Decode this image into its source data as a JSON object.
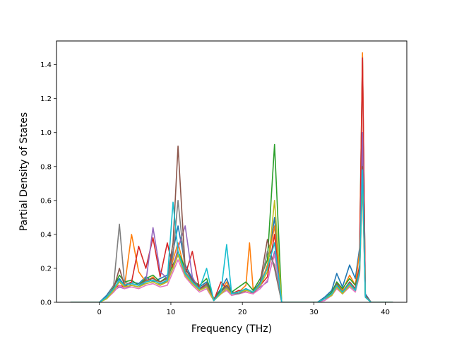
{
  "chart_data": {
    "type": "line",
    "title": "",
    "xlabel": "Frequency (THz)",
    "ylabel": "Partial Density of States",
    "xlim": [
      -6,
      43
    ],
    "ylim": [
      0,
      1.54
    ],
    "xticks": [
      0,
      10,
      20,
      30,
      40
    ],
    "yticks": [
      0.0,
      0.2,
      0.4,
      0.6,
      0.8,
      1.0,
      1.2,
      1.4
    ],
    "xtick_labels": [
      "0",
      "10",
      "20",
      "30",
      "40"
    ],
    "ytick_labels": [
      "0.0",
      "0.2",
      "0.4",
      "0.6",
      "0.8",
      "1.0",
      "1.2",
      "1.4"
    ],
    "grid": false,
    "legend": false,
    "series": [
      {
        "color": "#1f77b4",
        "x": [
          -4,
          0,
          1,
          2,
          2.8,
          3.5,
          4.5,
          5.5,
          6.5,
          7.5,
          8.5,
          9.5,
          10.3,
          11,
          12,
          13,
          14,
          15,
          16,
          17,
          17.8,
          18.5,
          19.5,
          20.5,
          21.5,
          22.5,
          23.5,
          24.5,
          25.5,
          28,
          30.5,
          31.5,
          32.5,
          33.2,
          34,
          35,
          35.8,
          36.4,
          36.8,
          37.2,
          38,
          41
        ],
        "y": [
          0,
          0,
          0.04,
          0.1,
          0.14,
          0.1,
          0.12,
          0.11,
          0.15,
          0.12,
          0.14,
          0.16,
          0.3,
          0.45,
          0.22,
          0.14,
          0.09,
          0.12,
          0.02,
          0.08,
          0.14,
          0.06,
          0.05,
          0.08,
          0.05,
          0.12,
          0.2,
          0.5,
          0,
          0,
          0,
          0.03,
          0.07,
          0.17,
          0.09,
          0.22,
          0.14,
          0.32,
          1.45,
          0.05,
          0,
          0
        ]
      },
      {
        "color": "#ff7f0e",
        "x": [
          -4,
          0,
          1,
          2,
          2.8,
          3.5,
          4.5,
          5.5,
          6.5,
          7.5,
          8.5,
          9.5,
          10.3,
          11,
          12,
          13,
          14,
          15,
          16,
          17,
          17.8,
          18.5,
          19.5,
          20.5,
          21,
          21.5,
          22.5,
          23.5,
          24.5,
          25.5,
          28,
          30.5,
          31.5,
          32.5,
          33.2,
          34,
          35,
          35.8,
          36.4,
          36.8,
          37.2,
          38,
          41
        ],
        "y": [
          0,
          0,
          0.03,
          0.08,
          0.12,
          0.09,
          0.4,
          0.18,
          0.12,
          0.15,
          0.1,
          0.13,
          0.25,
          0.35,
          0.18,
          0.12,
          0.08,
          0.1,
          0.01,
          0.06,
          0.12,
          0.05,
          0.06,
          0.1,
          0.35,
          0.08,
          0.1,
          0.22,
          0.45,
          0,
          0,
          0,
          0.02,
          0.05,
          0.12,
          0.07,
          0.16,
          0.1,
          0.3,
          1.47,
          0.04,
          0,
          0
        ]
      },
      {
        "color": "#2ca02c",
        "x": [
          -4,
          0,
          1,
          2,
          2.8,
          3.5,
          4.5,
          5.5,
          6.5,
          7.5,
          8.5,
          9.5,
          10.3,
          11,
          12,
          13,
          14,
          15,
          16,
          17,
          17.8,
          18.5,
          19.5,
          20.5,
          21.5,
          22.5,
          23.5,
          24.5,
          25.5,
          28,
          30.5,
          31.5,
          32.5,
          33.2,
          34,
          35,
          35.8,
          36.4,
          36.8,
          37.2,
          38,
          41
        ],
        "y": [
          0,
          0,
          0.03,
          0.09,
          0.16,
          0.12,
          0.13,
          0.1,
          0.14,
          0.16,
          0.12,
          0.15,
          0.22,
          0.3,
          0.2,
          0.13,
          0.1,
          0.14,
          0.02,
          0.07,
          0.1,
          0.06,
          0.09,
          0.12,
          0.07,
          0.14,
          0.25,
          0.93,
          0,
          0,
          0,
          0.02,
          0.06,
          0.12,
          0.08,
          0.14,
          0.1,
          0.2,
          0.85,
          0.03,
          0,
          0
        ]
      },
      {
        "color": "#d62728",
        "x": [
          -4,
          0,
          1,
          2,
          2.8,
          3.5,
          4.5,
          5.5,
          6.5,
          7.5,
          8.5,
          9.5,
          10.3,
          11,
          12,
          13,
          14,
          15,
          16,
          17,
          17.8,
          18.5,
          19.5,
          20.5,
          21.5,
          22.5,
          23.5,
          24.5,
          25.5,
          28,
          30.5,
          31.5,
          32.5,
          33.2,
          34,
          35,
          35.8,
          36.4,
          36.8,
          37.2,
          38,
          41
        ],
        "y": [
          0,
          0,
          0.03,
          0.08,
          0.1,
          0.09,
          0.12,
          0.33,
          0.2,
          0.38,
          0.15,
          0.35,
          0.2,
          0.28,
          0.16,
          0.3,
          0.08,
          0.1,
          0.01,
          0.12,
          0.08,
          0.05,
          0.07,
          0.06,
          0.05,
          0.1,
          0.15,
          0.4,
          0,
          0,
          0,
          0.02,
          0.05,
          0.1,
          0.06,
          0.12,
          0.08,
          0.22,
          1.44,
          0.04,
          0,
          0
        ]
      },
      {
        "color": "#9467bd",
        "x": [
          -4,
          0,
          1,
          2,
          2.8,
          3.5,
          4.5,
          5.5,
          6.5,
          7.5,
          8.5,
          9.5,
          10.3,
          11,
          12,
          13,
          14,
          15,
          16,
          17,
          17.8,
          18.5,
          19.5,
          20.5,
          21.5,
          22.5,
          23.5,
          24.5,
          25.5,
          28,
          30.5,
          31.5,
          32.5,
          33.2,
          34,
          35,
          35.8,
          36.4,
          36.8,
          37.2,
          38,
          41
        ],
        "y": [
          0,
          0,
          0.03,
          0.07,
          0.09,
          0.08,
          0.1,
          0.09,
          0.12,
          0.44,
          0.18,
          0.14,
          0.2,
          0.32,
          0.45,
          0.15,
          0.07,
          0.09,
          0.01,
          0.05,
          0.07,
          0.05,
          0.06,
          0.07,
          0.06,
          0.09,
          0.12,
          0.3,
          0,
          0,
          0,
          0.02,
          0.04,
          0.09,
          0.05,
          0.1,
          0.07,
          0.18,
          1.0,
          0.03,
          0,
          0
        ]
      },
      {
        "color": "#8c564b",
        "x": [
          -4,
          0,
          1,
          2,
          2.8,
          3.5,
          4.5,
          5.5,
          6.5,
          7.5,
          8.5,
          9.5,
          10.3,
          11,
          12,
          13,
          14,
          15,
          16,
          17,
          17.8,
          18.5,
          19.5,
          20.5,
          21.5,
          22.5,
          23.5,
          24.5,
          25.5,
          28,
          30.5,
          31.5,
          32.5,
          33.2,
          34,
          35,
          35.8,
          36.4,
          36.8,
          37.2,
          38,
          41
        ],
        "y": [
          0,
          0,
          0.03,
          0.08,
          0.2,
          0.1,
          0.11,
          0.1,
          0.13,
          0.14,
          0.12,
          0.14,
          0.35,
          0.92,
          0.2,
          0.13,
          0.08,
          0.11,
          0.02,
          0.06,
          0.1,
          0.05,
          0.06,
          0.08,
          0.06,
          0.12,
          0.37,
          0.2,
          0,
          0,
          0,
          0.02,
          0.05,
          0.11,
          0.06,
          0.12,
          0.08,
          0.2,
          0.8,
          0.04,
          0,
          0
        ]
      },
      {
        "color": "#e377c2",
        "x": [
          -4,
          0,
          1,
          2,
          2.8,
          3.5,
          4.5,
          5.5,
          6.5,
          7.5,
          8.5,
          9.5,
          10.3,
          11,
          12,
          13,
          14,
          15,
          16,
          17,
          17.8,
          18.5,
          19.5,
          20.5,
          21.5,
          22.5,
          23.5,
          24.5,
          25.5,
          28,
          30.5,
          31.5,
          32.5,
          33.2,
          34,
          35,
          35.8,
          36.4,
          36.8,
          37.2,
          38,
          41
        ],
        "y": [
          0,
          0,
          0.02,
          0.06,
          0.1,
          0.08,
          0.09,
          0.08,
          0.1,
          0.11,
          0.09,
          0.1,
          0.18,
          0.25,
          0.15,
          0.1,
          0.06,
          0.08,
          0.01,
          0.05,
          0.07,
          0.04,
          0.05,
          0.06,
          0.05,
          0.08,
          0.13,
          0.28,
          0,
          0,
          0,
          0.01,
          0.04,
          0.08,
          0.05,
          0.09,
          0.06,
          0.16,
          0.7,
          0.03,
          0,
          0
        ]
      },
      {
        "color": "#7f7f7f",
        "x": [
          -4,
          0,
          1,
          2,
          2.8,
          3.5,
          4.5,
          5.5,
          6.5,
          7.5,
          8.5,
          9.5,
          10.3,
          11,
          12,
          13,
          14,
          15,
          16,
          17,
          17.8,
          18.5,
          19.5,
          20.5,
          21.5,
          22.5,
          23.5,
          24.5,
          25.5,
          28,
          30.5,
          31.5,
          32.5,
          33.2,
          34,
          35,
          35.8,
          36.4,
          36.8,
          37.2,
          38,
          41
        ],
        "y": [
          0,
          0,
          0.03,
          0.1,
          0.46,
          0.12,
          0.1,
          0.09,
          0.12,
          0.13,
          0.11,
          0.12,
          0.28,
          0.6,
          0.18,
          0.12,
          0.07,
          0.1,
          0.01,
          0.06,
          0.09,
          0.05,
          0.05,
          0.07,
          0.06,
          0.1,
          0.3,
          0.22,
          0,
          0,
          0,
          0.02,
          0.04,
          0.1,
          0.05,
          0.11,
          0.07,
          0.19,
          0.75,
          0.03,
          0,
          0
        ]
      },
      {
        "color": "#bcbd22",
        "x": [
          -4,
          0,
          1,
          2,
          2.8,
          3.5,
          4.5,
          5.5,
          6.5,
          7.5,
          8.5,
          9.5,
          10.3,
          11,
          12,
          13,
          14,
          15,
          16,
          17,
          17.8,
          18.5,
          19.5,
          20.5,
          21.5,
          22.5,
          23.5,
          24.5,
          25.5,
          28,
          30.5,
          31.5,
          32.5,
          33.2,
          34,
          35,
          35.8,
          36.4,
          36.8,
          37.2,
          38,
          41
        ],
        "y": [
          0,
          0,
          0.02,
          0.07,
          0.12,
          0.09,
          0.1,
          0.09,
          0.11,
          0.12,
          0.1,
          0.12,
          0.2,
          0.28,
          0.16,
          0.11,
          0.07,
          0.09,
          0.01,
          0.05,
          0.08,
          0.05,
          0.06,
          0.07,
          0.06,
          0.1,
          0.18,
          0.6,
          0,
          0,
          0,
          0.02,
          0.04,
          0.09,
          0.05,
          0.1,
          0.07,
          0.17,
          0.72,
          0.03,
          0,
          0
        ]
      },
      {
        "color": "#17becf",
        "x": [
          -4,
          0,
          1,
          2,
          2.8,
          3.5,
          4.5,
          5.5,
          6.5,
          7.5,
          8.5,
          9.5,
          10.3,
          11,
          12,
          13,
          14,
          15,
          16,
          17,
          17.8,
          18.5,
          19.5,
          20.5,
          21.5,
          22.5,
          23.5,
          24.5,
          25.5,
          28,
          30.5,
          31.5,
          32.5,
          33.2,
          34,
          35,
          35.8,
          36.4,
          36.8,
          37.2,
          38,
          41
        ],
        "y": [
          0,
          0,
          0.03,
          0.08,
          0.13,
          0.1,
          0.11,
          0.1,
          0.12,
          0.13,
          0.11,
          0.13,
          0.59,
          0.3,
          0.17,
          0.12,
          0.08,
          0.2,
          0.01,
          0.06,
          0.34,
          0.05,
          0.06,
          0.08,
          0.06,
          0.11,
          0.2,
          0.35,
          0,
          0,
          0,
          0.02,
          0.05,
          0.1,
          0.06,
          0.11,
          0.07,
          0.18,
          0.78,
          0.03,
          0,
          0
        ]
      }
    ]
  }
}
